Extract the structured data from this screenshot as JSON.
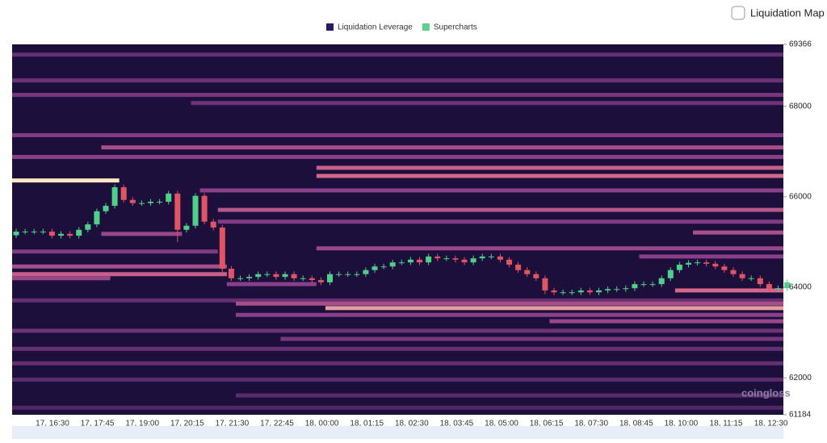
{
  "toggle_label": "Liquidation Map",
  "watermark": "coingloss",
  "chart_data": {
    "type": "candlestick",
    "series": [
      {
        "name": "Liquidation Leverage",
        "color": "#2b1a63"
      },
      {
        "name": "Supercharts",
        "color": "#5fcf8e"
      }
    ],
    "up_color": "#4fcf8a",
    "down_color": "#e05563",
    "background": "#1d0f3b",
    "ylim": [
      61184,
      69366
    ],
    "yticks": [
      61184,
      62000,
      64000,
      66000,
      68000,
      69366
    ],
    "xticks": [
      "17, 16:30",
      "17, 17:45",
      "17, 19:00",
      "17, 20:15",
      "17, 21:30",
      "17, 22:45",
      "18, 00:00",
      "18, 01:15",
      "18, 02:30",
      "18, 03:45",
      "18, 05:00",
      "18, 06:15",
      "18, 07:30",
      "18, 08:45",
      "18, 10:00",
      "18, 11:15",
      "18, 12:30"
    ],
    "open": [
      65150,
      65230,
      65230,
      65230,
      65230,
      65140,
      65180,
      65140,
      65270,
      65390,
      65680,
      65800,
      66210,
      65930,
      65860,
      65860,
      65890,
      65890,
      66070,
      65270,
      65360,
      66020,
      65450,
      65320,
      64410,
      64200,
      64200,
      64230,
      64290,
      64290,
      64230,
      64290,
      64200,
      64200,
      64160,
      64110,
      64290,
      64290,
      64290,
      64290,
      64380,
      64460,
      64460,
      64550,
      64550,
      64610,
      64550,
      64680,
      64640,
      64640,
      64610,
      64550,
      64640,
      64680,
      64680,
      64610,
      64500,
      64380,
      64290,
      64200,
      63930,
      63890,
      63890,
      63890,
      63930,
      63890,
      63930,
      63960,
      63960,
      63980,
      64070,
      64070,
      64070,
      64200,
      64380,
      64500,
      64540,
      64550,
      64520,
      64460,
      64380,
      64290,
      64200,
      64200,
      64070,
      63960,
      63980
    ],
    "high": [
      65290,
      65290,
      65290,
      65290,
      65290,
      65240,
      65240,
      65330,
      65450,
      65740,
      65860,
      66270,
      66270,
      65990,
      65920,
      65950,
      65950,
      66130,
      66130,
      65420,
      66080,
      66080,
      65510,
      65380,
      64470,
      64260,
      64290,
      64350,
      64350,
      64350,
      64350,
      64350,
      64260,
      64260,
      64220,
      64350,
      64350,
      64350,
      64350,
      64440,
      64520,
      64520,
      64610,
      64610,
      64670,
      64670,
      64740,
      64740,
      64700,
      64700,
      64670,
      64700,
      64740,
      64740,
      64740,
      64670,
      64560,
      64440,
      64350,
      64260,
      63990,
      63950,
      63950,
      63990,
      63990,
      63990,
      64020,
      64020,
      64040,
      64130,
      64130,
      64130,
      64260,
      64440,
      64560,
      64600,
      64610,
      64610,
      64580,
      64520,
      64440,
      64350,
      64260,
      64260,
      64130,
      64040,
      64170
    ],
    "low": [
      65090,
      65170,
      65170,
      65170,
      65080,
      65080,
      65080,
      65080,
      65210,
      65330,
      65620,
      65740,
      65870,
      65800,
      65800,
      65800,
      65830,
      65830,
      65000,
      65210,
      65300,
      65390,
      65260,
      64300,
      64140,
      64140,
      64140,
      64170,
      64230,
      64170,
      64170,
      64140,
      64140,
      64100,
      64050,
      64050,
      64230,
      64230,
      64230,
      64230,
      64320,
      64400,
      64400,
      64490,
      64490,
      64490,
      64490,
      64580,
      64580,
      64550,
      64490,
      64490,
      64580,
      64620,
      64550,
      64440,
      64320,
      64230,
      64140,
      63850,
      63830,
      63830,
      63830,
      63830,
      63830,
      63830,
      63870,
      63900,
      63900,
      63920,
      64010,
      64010,
      64010,
      64140,
      64320,
      64440,
      64480,
      64460,
      64400,
      64320,
      64230,
      64140,
      64140,
      64010,
      63900,
      63900,
      63920
    ],
    "close": [
      65230,
      65230,
      65230,
      65230,
      65140,
      65180,
      65140,
      65270,
      65390,
      65680,
      65800,
      66210,
      65930,
      65860,
      65860,
      65890,
      65890,
      66070,
      65270,
      65360,
      66020,
      65450,
      65320,
      64410,
      64200,
      64200,
      64230,
      64290,
      64290,
      64230,
      64290,
      64200,
      64200,
      64160,
      64110,
      64290,
      64290,
      64290,
      64290,
      64380,
      64460,
      64460,
      64550,
      64550,
      64610,
      64550,
      64680,
      64640,
      64640,
      64610,
      64550,
      64640,
      64680,
      64680,
      64610,
      64500,
      64380,
      64290,
      64200,
      63930,
      63890,
      63890,
      63890,
      63930,
      63890,
      63930,
      63960,
      63960,
      63980,
      64070,
      64070,
      64070,
      64200,
      64380,
      64500,
      64540,
      64550,
      64520,
      64460,
      64380,
      64290,
      64200,
      64200,
      64070,
      63960,
      63980,
      64110
    ],
    "heatmap": [
      {
        "price": 69140,
        "start": 0,
        "end": 87,
        "level": 0.3
      },
      {
        "price": 68570,
        "start": 0,
        "end": 87,
        "level": 0.35
      },
      {
        "price": 68250,
        "start": 0,
        "end": 87,
        "level": 0.4
      },
      {
        "price": 68070,
        "start": 20,
        "end": 87,
        "level": 0.35
      },
      {
        "price": 67360,
        "start": 0,
        "end": 87,
        "level": 0.45
      },
      {
        "price": 67090,
        "start": 10,
        "end": 87,
        "level": 0.6
      },
      {
        "price": 66880,
        "start": 0,
        "end": 87,
        "level": 0.5
      },
      {
        "price": 66640,
        "start": 34,
        "end": 87,
        "level": 0.7
      },
      {
        "price": 66460,
        "start": 34,
        "end": 87,
        "level": 0.75
      },
      {
        "price": 66360,
        "start": 0,
        "end": 12,
        "level": 1
      },
      {
        "price": 66140,
        "start": 21,
        "end": 87,
        "level": 0.5
      },
      {
        "price": 65710,
        "start": 23,
        "end": 87,
        "level": 0.65
      },
      {
        "price": 65450,
        "start": 23,
        "end": 87,
        "level": 0.45
      },
      {
        "price": 65180,
        "start": 10,
        "end": 19,
        "level": 0.55
      },
      {
        "price": 65210,
        "start": 76,
        "end": 87,
        "level": 0.6
      },
      {
        "price": 64860,
        "start": 34,
        "end": 87,
        "level": 0.55
      },
      {
        "price": 64790,
        "start": 0,
        "end": 23,
        "level": 0.45
      },
      {
        "price": 64680,
        "start": 70,
        "end": 87,
        "level": 0.5
      },
      {
        "price": 64460,
        "start": 0,
        "end": 24,
        "level": 0.6
      },
      {
        "price": 64290,
        "start": 0,
        "end": 24,
        "level": 0.7
      },
      {
        "price": 64200,
        "start": 0,
        "end": 11,
        "level": 0.55
      },
      {
        "price": 64070,
        "start": 24,
        "end": 34,
        "level": 0.5
      },
      {
        "price": 63930,
        "start": 74,
        "end": 87,
        "level": 0.75
      },
      {
        "price": 63710,
        "start": 0,
        "end": 87,
        "level": 0.3
      },
      {
        "price": 63640,
        "start": 25,
        "end": 87,
        "level": 0.6
      },
      {
        "price": 63540,
        "start": 35,
        "end": 87,
        "level": 0.85
      },
      {
        "price": 63390,
        "start": 25,
        "end": 87,
        "level": 0.5
      },
      {
        "price": 63250,
        "start": 60,
        "end": 87,
        "level": 0.55
      },
      {
        "price": 63040,
        "start": 0,
        "end": 87,
        "level": 0.35
      },
      {
        "price": 62860,
        "start": 30,
        "end": 87,
        "level": 0.4
      },
      {
        "price": 62640,
        "start": 0,
        "end": 87,
        "level": 0.3
      },
      {
        "price": 62320,
        "start": 0,
        "end": 87,
        "level": 0.3
      },
      {
        "price": 61960,
        "start": 0,
        "end": 87,
        "level": 0.25
      },
      {
        "price": 61610,
        "start": 25,
        "end": 87,
        "level": 0.25
      },
      {
        "price": 61340,
        "start": 0,
        "end": 87,
        "level": 0.2
      }
    ]
  }
}
